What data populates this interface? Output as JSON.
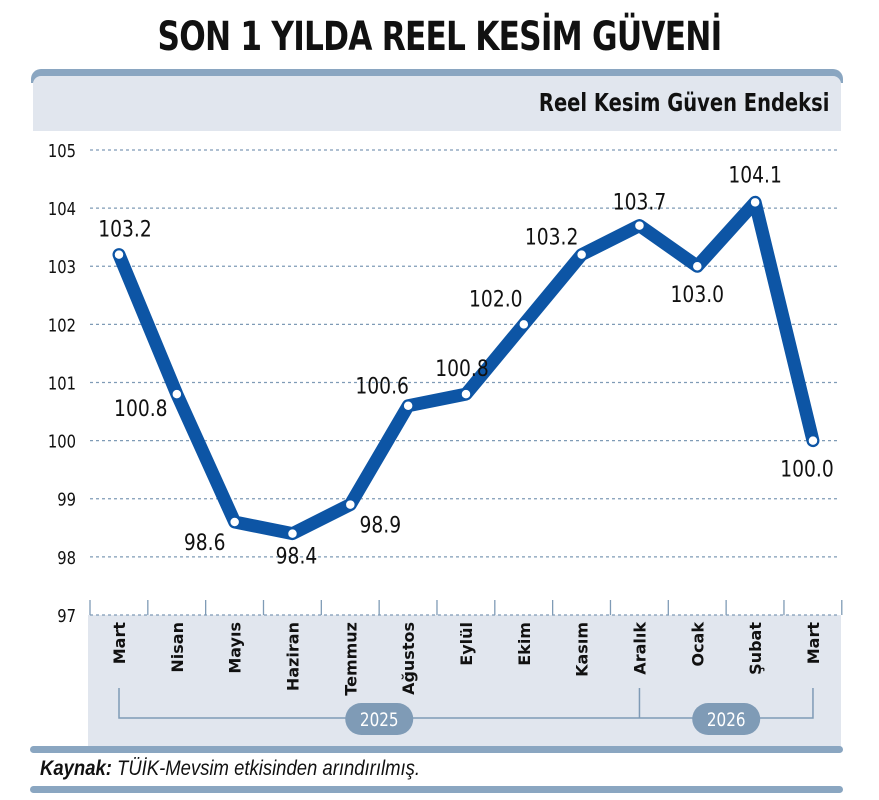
{
  "header": {
    "title": "SON 1 YILDA REEL KESİM GÜVENİ",
    "subtitle": "Reel Kesim Güven Endeksi"
  },
  "footer": {
    "source_label": "Kaynak:",
    "source_text": " TÜİK-Mevsim etkisinden arındırılmış."
  },
  "colors": {
    "line": "#0d55a5",
    "frame": "#8aa6c1",
    "band": "#e1e6ee",
    "grid": "#7f9bb6"
  },
  "chart_data": {
    "type": "line",
    "title": "SON 1 YILDA REEL KESİM GÜVENİ",
    "subtitle": "Reel Kesim Güven Endeksi",
    "xlabel": "",
    "ylabel": "",
    "ylim": [
      97,
      105
    ],
    "yticks": [
      97,
      98,
      99,
      100,
      101,
      102,
      103,
      104,
      105
    ],
    "grid": true,
    "categories": [
      "Mart",
      "Nisan",
      "Mayıs",
      "Haziran",
      "Temmuz",
      "Ağustos",
      "Eylül",
      "Ekim",
      "Kasım",
      "Aralık",
      "Ocak",
      "Şubat",
      "Mart"
    ],
    "year_groups": [
      {
        "label": "2025",
        "from": "Mart",
        "to": "Aralık"
      },
      {
        "label": "2026",
        "from": "Aralık",
        "to": "Mart"
      }
    ],
    "series": [
      {
        "name": "Reel Kesim Güven Endeksi",
        "values": [
          103.2,
          100.8,
          98.6,
          98.4,
          98.9,
          100.6,
          100.8,
          102.0,
          103.2,
          103.7,
          103.0,
          104.1,
          100.0
        ]
      }
    ],
    "data_labels": [
      "103.2",
      "100.8",
      "98.6",
      "98.4",
      "98.9",
      "100.6",
      "100.8",
      "102.0",
      "103.2",
      "103.7",
      "103.0",
      "104.1",
      "100.0"
    ],
    "source": "Kaynak: TÜİK-Mevsim etkisinden arındırılmış."
  }
}
